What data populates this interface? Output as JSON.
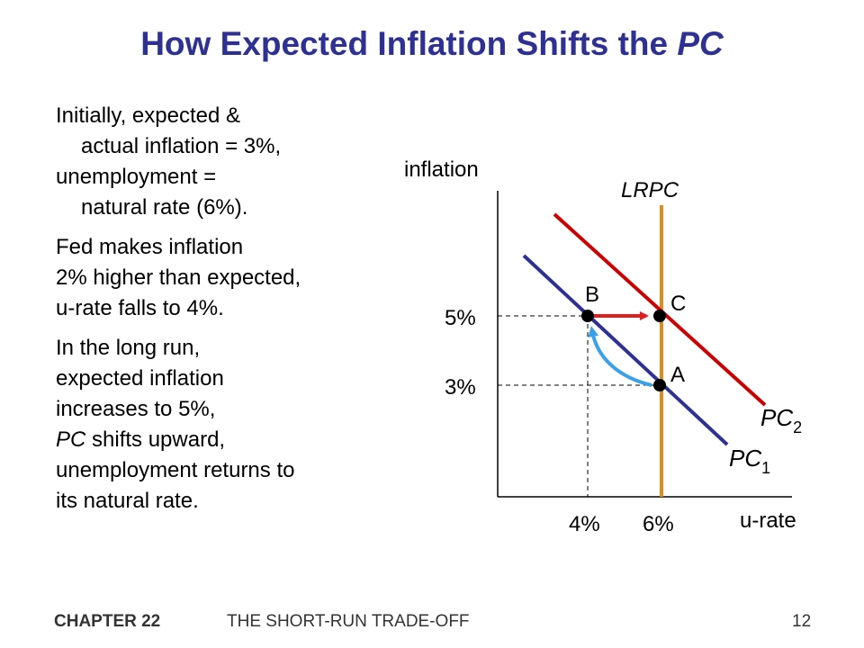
{
  "slide": {
    "title_main": "How Expected Inflation Shifts the",
    "title_italic": "PC"
  },
  "text": {
    "p1_line1": "Initially, expected &",
    "p1_line2": "actual inflation = 3%,",
    "p1_line3": "unemployment =",
    "p1_line4": "natural rate (6%).",
    "p2_line1": "Fed makes inflation",
    "p2_line2": "2% higher than expected,",
    "p2_line3": "u-rate falls to 4%.",
    "p3_line1": "In the long run,",
    "p3_line2": "expected inflation",
    "p3_line3": "increases to 5%,",
    "p3_line4_italic": "PC",
    "p3_line4_rest": " shifts upward,",
    "p3_line5": "unemployment returns to",
    "p3_line6": "its natural rate."
  },
  "diagram": {
    "y_axis_label": "inflation",
    "x_axis_label": "u-rate",
    "lrpc_label": "LRPC",
    "pc1_label": "PC",
    "pc1_sub": "1",
    "pc2_label": "PC",
    "pc2_sub": "2",
    "tick_5": "5%",
    "tick_3": "3%",
    "tick_4": "4%",
    "tick_6": "6%",
    "point_a": "A",
    "point_b": "B",
    "point_c": "C",
    "colors": {
      "pc1": "#2e3192",
      "pc2": "#cc0000",
      "lrpc": "#e08a1e",
      "arrow_shift": "#e02020",
      "arrow_curve": "#3aa0e8",
      "axis": "#000000"
    }
  },
  "footer": {
    "chapter": "CHAPTER 22",
    "subtitle": "THE SHORT-RUN TRADE-OFF",
    "page": "12"
  }
}
